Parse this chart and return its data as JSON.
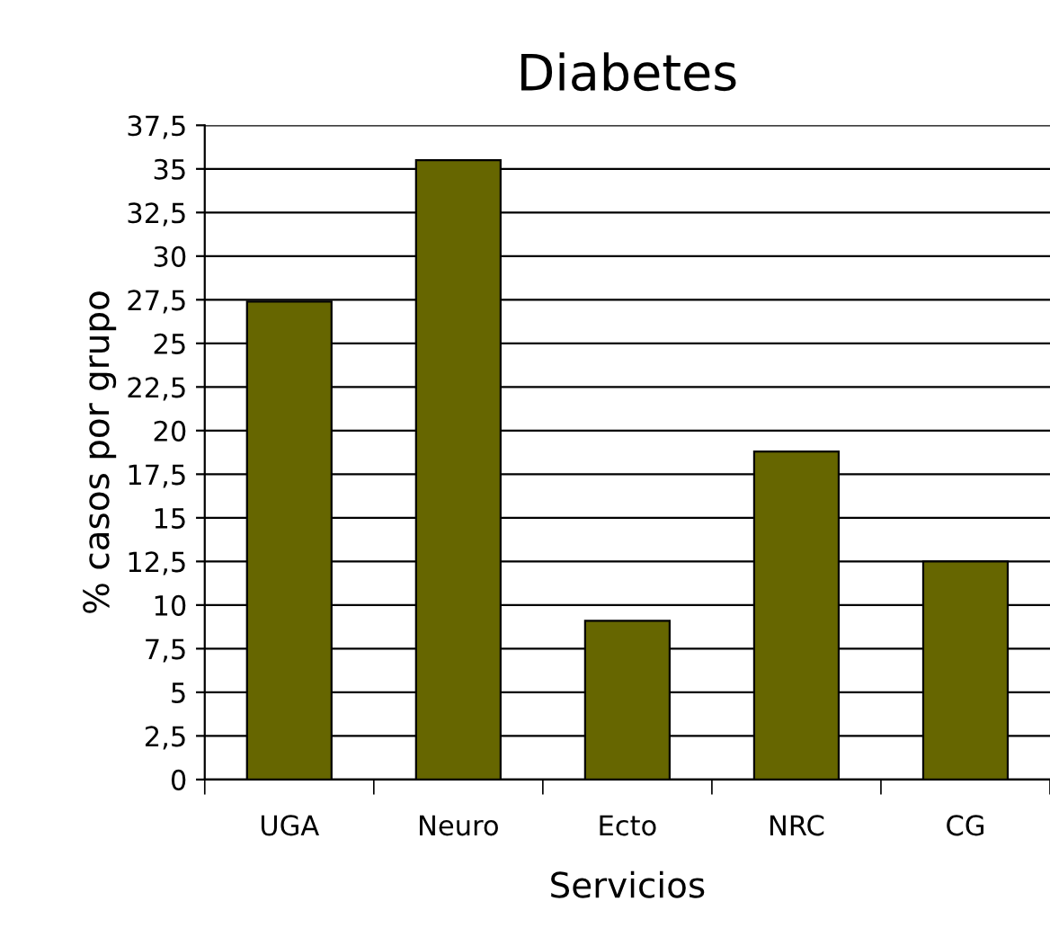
{
  "chart_data": {
    "type": "bar",
    "title": "Diabetes",
    "xlabel": "Servicios",
    "ylabel": "% casos por grupo",
    "categories": [
      "UGA",
      "Neuro",
      "Ecto",
      "NRC",
      "CG"
    ],
    "values": [
      27.4,
      35.5,
      9.1,
      18.8,
      12.5
    ],
    "color": "#666600",
    "ylim": [
      0,
      37.5
    ],
    "yticks": [
      0,
      {
        "value": 2.5,
        "label": "2,5"
      },
      5,
      {
        "value": 7.5,
        "label": "7,5"
      },
      10,
      {
        "value": 12.5,
        "label": "12,5"
      },
      15,
      {
        "value": 17.5,
        "label": "17,5"
      },
      20,
      {
        "value": 22.5,
        "label": "22,5"
      },
      25,
      {
        "value": 27.5,
        "label": "27,5"
      },
      30,
      {
        "value": 32.5,
        "label": "32,5"
      },
      35,
      {
        "value": 37.5,
        "label": "37,5"
      }
    ],
    "grid": "y",
    "legend": false
  }
}
